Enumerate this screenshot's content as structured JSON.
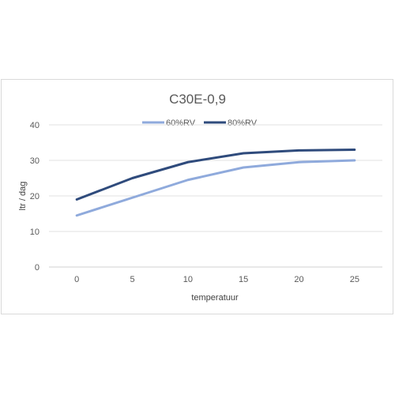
{
  "chart_data": {
    "type": "line",
    "title": "C30E-0,9",
    "xlabel": "temperatuur",
    "ylabel": "ltr / dag",
    "x": [
      0,
      5,
      10,
      15,
      20,
      25
    ],
    "ylim": [
      0,
      40
    ],
    "yticks": [
      0,
      10,
      20,
      30,
      40
    ],
    "grid": true,
    "legend_position": "top",
    "series": [
      {
        "name": "60%RV",
        "color": "#8faadc",
        "values": [
          14.5,
          19.5,
          24.5,
          28,
          29.5,
          30
        ]
      },
      {
        "name": "80%RV",
        "color": "#2f4b7c",
        "values": [
          19,
          25,
          29.5,
          32,
          32.8,
          33
        ]
      }
    ]
  }
}
